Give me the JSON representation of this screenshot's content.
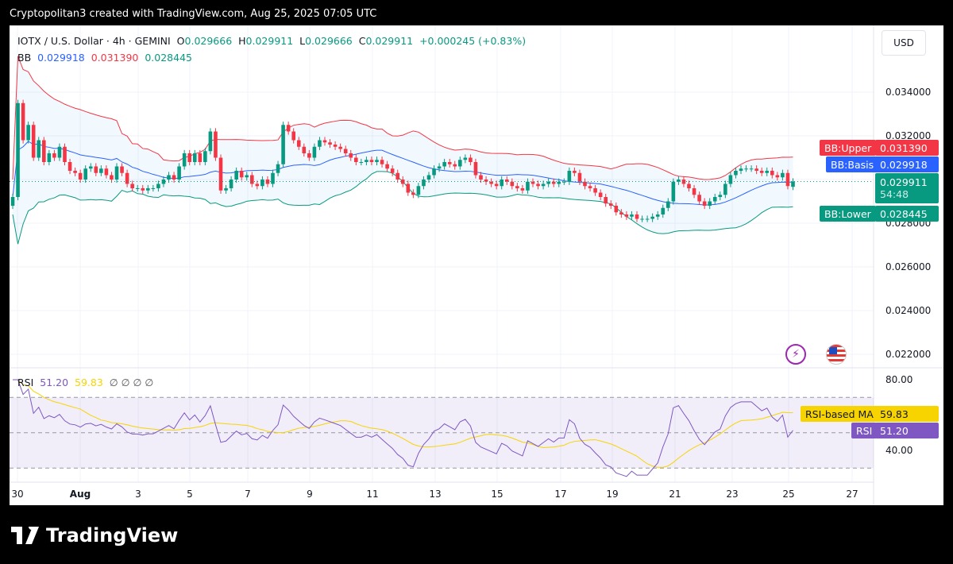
{
  "title": "Cryptopolitan3 created with TradingView.com, Aug 25, 2025 07:05 UTC",
  "legend": {
    "symbol": "IOTX / U.S. Dollar · 4h · GEMINI",
    "o_label": "O",
    "o": "0.029666",
    "h_label": "H",
    "h": "0.029911",
    "l_label": "L",
    "l": "0.029666",
    "c_label": "C",
    "c": "0.029911",
    "change": "+0.000245 (+0.83%)"
  },
  "bb": {
    "label": "BB",
    "basis": "0.029918",
    "upper": "0.031390",
    "lower": "0.028445"
  },
  "rsi": {
    "label": "RSI",
    "value": "51.20",
    "ma": "59.83",
    "extras": "∅ ∅ ∅ ∅"
  },
  "currency": "USD",
  "price_ticks": [
    "0.034000",
    "0.032000",
    "0.028000",
    "0.026000",
    "0.024000",
    "0.022000"
  ],
  "price_tick_values": [
    0.034,
    0.032,
    0.028,
    0.026,
    0.024,
    0.022
  ],
  "rsi_ticks": [
    "80.00",
    "40.00"
  ],
  "rsi_tick_values": [
    80,
    40
  ],
  "time_ticks": [
    "30",
    "Aug",
    "3",
    "5",
    "7",
    "9",
    "11",
    "13",
    "15",
    "17",
    "19",
    "21",
    "23",
    "25",
    "27"
  ],
  "tags": {
    "upper_label": "BB:Upper",
    "upper": "0.031390",
    "basis_label": "BB:Basis",
    "basis": "0.029918",
    "price": "0.029911",
    "countdown": "54:48",
    "lower_label": "BB:Lower",
    "lower": "0.028445",
    "rsi_ma_label": "RSI-based MA",
    "rsi_ma": "59.83",
    "rsi_label": "RSI",
    "rsi": "51.20"
  },
  "colors": {
    "up": "#089981",
    "down": "#f23645",
    "basis": "#2962ff",
    "rsi": "#7e57c2",
    "rsi_ma": "#f7d400"
  },
  "brand": "TradingView",
  "chart_data": {
    "type": "candlestick",
    "interval": "4h",
    "ylim": [
      0.0215,
      0.0355
    ],
    "first_open": 0.0288,
    "closes": [
      0.0292,
      0.0335,
      0.0318,
      0.0325,
      0.031,
      0.0318,
      0.0308,
      0.0312,
      0.031,
      0.0315,
      0.0308,
      0.0304,
      0.0303,
      0.03,
      0.0305,
      0.0306,
      0.0303,
      0.0305,
      0.0302,
      0.03,
      0.0306,
      0.0303,
      0.0298,
      0.0296,
      0.0296,
      0.0295,
      0.0296,
      0.0296,
      0.0298,
      0.03,
      0.0302,
      0.03,
      0.0306,
      0.0312,
      0.0308,
      0.0312,
      0.0308,
      0.0313,
      0.0322,
      0.031,
      0.0295,
      0.0296,
      0.03,
      0.0304,
      0.0301,
      0.0302,
      0.0298,
      0.0297,
      0.03,
      0.0298,
      0.0303,
      0.0307,
      0.0325,
      0.0322,
      0.0318,
      0.0315,
      0.0312,
      0.031,
      0.0315,
      0.0318,
      0.0317,
      0.0316,
      0.0315,
      0.0314,
      0.0312,
      0.031,
      0.0308,
      0.0308,
      0.0309,
      0.0308,
      0.0309,
      0.0307,
      0.0305,
      0.0303,
      0.03,
      0.0298,
      0.0294,
      0.0293,
      0.0297,
      0.03,
      0.0302,
      0.0305,
      0.0306,
      0.0308,
      0.0307,
      0.0306,
      0.0309,
      0.031,
      0.0308,
      0.0302,
      0.03,
      0.0299,
      0.0298,
      0.0297,
      0.03,
      0.0299,
      0.0297,
      0.0296,
      0.0295,
      0.0299,
      0.0298,
      0.0297,
      0.0298,
      0.0299,
      0.0298,
      0.0299,
      0.0299,
      0.0304,
      0.0303,
      0.0299,
      0.0297,
      0.0296,
      0.0294,
      0.0292,
      0.0289,
      0.0288,
      0.0285,
      0.0284,
      0.0283,
      0.0284,
      0.0282,
      0.0282,
      0.0282,
      0.0283,
      0.0284,
      0.0287,
      0.029,
      0.0299,
      0.03,
      0.0298,
      0.0296,
      0.0293,
      0.029,
      0.0288,
      0.029,
      0.0292,
      0.0293,
      0.0298,
      0.0302,
      0.0304,
      0.0305,
      0.0305,
      0.0305,
      0.0304,
      0.0303,
      0.0304,
      0.0302,
      0.0301,
      0.0303,
      0.0297,
      0.029911
    ],
    "bb_period": 20,
    "bb_mult": 2,
    "rsi_period": 14,
    "rsi_ma_period": 14,
    "rsi_bands": [
      70,
      30
    ]
  }
}
